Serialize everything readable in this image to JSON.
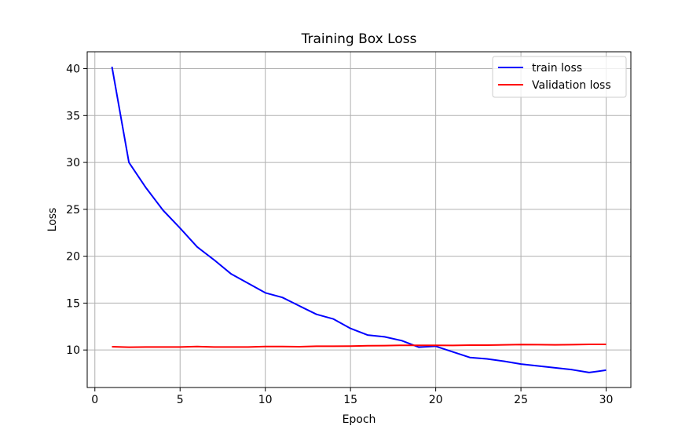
{
  "chart_data": {
    "type": "line",
    "title": "Training Box Loss",
    "xlabel": "Epoch",
    "ylabel": "Loss",
    "xlim": [
      -0.45,
      31.45
    ],
    "ylim": [
      6.0,
      41.8
    ],
    "xticks": [
      0,
      5,
      10,
      15,
      20,
      25,
      30
    ],
    "yticks": [
      10,
      15,
      20,
      25,
      30,
      35,
      40
    ],
    "grid": true,
    "legend_position": "top-right",
    "x": [
      1,
      2,
      3,
      4,
      5,
      6,
      7,
      8,
      9,
      10,
      11,
      12,
      13,
      14,
      15,
      16,
      17,
      18,
      19,
      20,
      21,
      22,
      23,
      24,
      25,
      26,
      27,
      28,
      29,
      30
    ],
    "series": [
      {
        "name": "train loss",
        "color": "#0000ff",
        "values": [
          40.2,
          30.0,
          27.3,
          24.9,
          23.0,
          21.0,
          19.6,
          18.1,
          17.1,
          16.1,
          15.6,
          14.7,
          13.8,
          13.3,
          12.3,
          11.6,
          11.4,
          11.0,
          10.3,
          10.4,
          9.8,
          9.2,
          9.05,
          8.8,
          8.5,
          8.3,
          8.1,
          7.9,
          7.6,
          7.85
        ]
      },
      {
        "name": "Validation loss",
        "color": "#ff0000",
        "values": [
          10.35,
          10.3,
          10.32,
          10.32,
          10.32,
          10.37,
          10.32,
          10.32,
          10.32,
          10.37,
          10.37,
          10.35,
          10.4,
          10.4,
          10.42,
          10.45,
          10.47,
          10.5,
          10.5,
          10.5,
          10.48,
          10.52,
          10.52,
          10.55,
          10.58,
          10.57,
          10.55,
          10.57,
          10.6,
          10.6
        ]
      }
    ]
  }
}
